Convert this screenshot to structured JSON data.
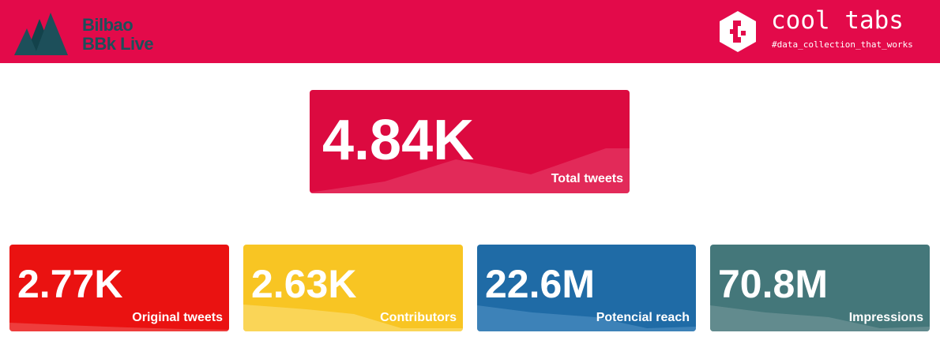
{
  "header": {
    "brand": {
      "line1": "Bilbao",
      "line2": "BBk Live",
      "logo_icon": "mountains-icon",
      "color": "#1d4f5a"
    },
    "product": {
      "title": "cool tabs",
      "tagline": "#data_collection_that_works",
      "logo_icon": "hexagon-bracket-icon"
    },
    "background": "#e30a4a"
  },
  "metrics": {
    "total": {
      "value": "4.84K",
      "label": "Total tweets",
      "color": "#dc0a40"
    },
    "original": {
      "value": "2.77K",
      "label": "Original tweets",
      "color": "#ea1211"
    },
    "contributors": {
      "value": "2.63K",
      "label": "Contributors",
      "color": "#f8c523"
    },
    "reach": {
      "value": "22.6M",
      "label": "Potencial reach",
      "color": "#1f6ba6"
    },
    "impressions": {
      "value": "70.8M",
      "label": "Impressions",
      "color": "#44777a"
    }
  }
}
